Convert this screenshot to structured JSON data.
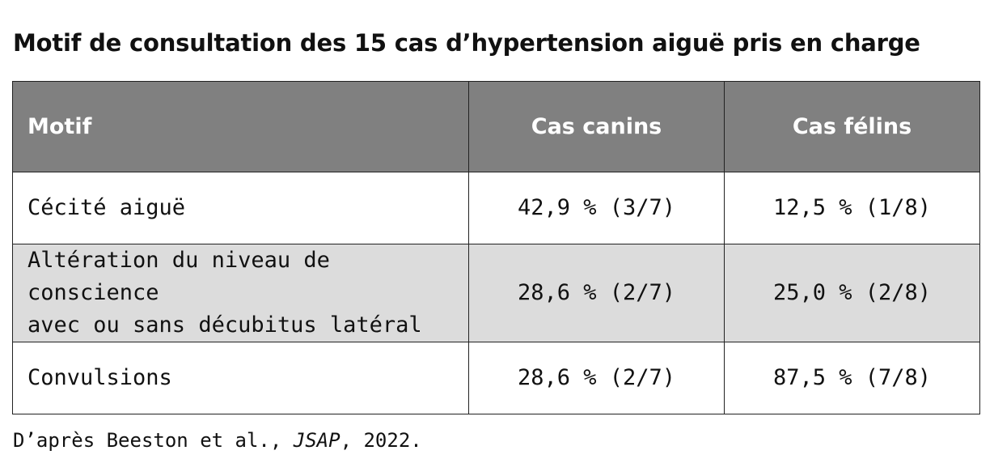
{
  "title": "Motif de consultation des 15 cas d’hypertension aiguë pris en charge",
  "table": {
    "headers": [
      "Motif",
      "Cas canins",
      "Cas félins"
    ],
    "rows": [
      {
        "motif": "Cécité aiguë",
        "canins": "42,9 % (3/7)",
        "felins": "12,5 % (1/8)"
      },
      {
        "motif_line1": "Altération du niveau de conscience",
        "motif_line2": "avec ou sans décubitus latéral",
        "canins": "28,6 % (2/7)",
        "felins": "25,0 % (2/8)"
      },
      {
        "motif": "Convulsions",
        "canins": "28,6 % (2/7)",
        "felins": "87,5 % (7/8)"
      }
    ]
  },
  "source": {
    "prefix": "D’après Beeston et al., ",
    "journal": "JSAP",
    "suffix": ", 2022."
  }
}
